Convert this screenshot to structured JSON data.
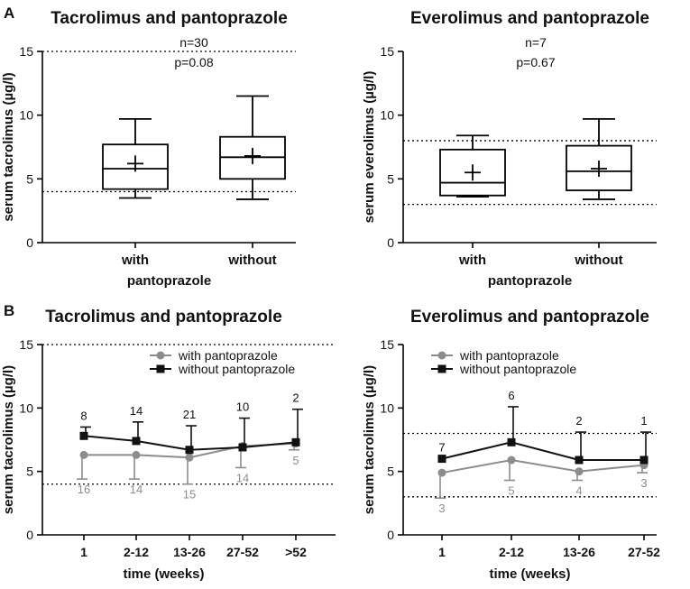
{
  "panel_labels": [
    "A",
    "B"
  ],
  "colors": {
    "with": "#8c8c8c",
    "without": "#111111",
    "axis": "#000000",
    "ref": "#000000"
  },
  "chart_data": [
    {
      "id": "A-tac",
      "type": "box",
      "title": "Tacrolimus and pantoprazole",
      "ylabel": "serum tacrolimus (µg/l)",
      "xlabel": "pantoprazole",
      "ylim": [
        0,
        15
      ],
      "yticks": [
        0,
        5,
        10,
        15
      ],
      "ref_lines": [
        4,
        15
      ],
      "annotations": [
        "n=30",
        "p=0.08"
      ],
      "categories": [
        "with",
        "without"
      ],
      "boxes": [
        {
          "min": 3.5,
          "q1": 4.2,
          "median": 5.8,
          "q3": 7.7,
          "max": 9.7,
          "mean": 6.2
        },
        {
          "min": 3.4,
          "q1": 5.0,
          "median": 6.7,
          "q3": 8.3,
          "max": 11.5,
          "mean": 6.8
        }
      ]
    },
    {
      "id": "A-eve",
      "type": "box",
      "title": "Everolimus and pantoprazole",
      "ylabel": "serum everolimus (µg/l)",
      "xlabel": "pantoprazole",
      "ylim": [
        0,
        15
      ],
      "yticks": [
        0,
        5,
        10,
        15
      ],
      "ref_lines": [
        3,
        8
      ],
      "annotations": [
        "n=7",
        "p=0.67"
      ],
      "categories": [
        "with",
        "without"
      ],
      "boxes": [
        {
          "min": 3.6,
          "q1": 3.7,
          "median": 4.7,
          "q3": 7.3,
          "max": 8.4,
          "mean": 5.5
        },
        {
          "min": 3.4,
          "q1": 4.1,
          "median": 5.6,
          "q3": 7.6,
          "max": 9.7,
          "mean": 5.8
        }
      ]
    },
    {
      "id": "B-tac",
      "type": "line",
      "title": "Tacrolimus and pantoprazole",
      "ylabel": "serum tacrolimus (µg/l)",
      "xlabel": "time (weeks)",
      "ylim": [
        0,
        15
      ],
      "yticks": [
        0,
        5,
        10,
        15
      ],
      "ref_lines": [
        4,
        15
      ],
      "categories": [
        "1",
        "2-12",
        "13-26",
        "27-52",
        ">52"
      ],
      "legend": [
        "with pantoprazole",
        "without pantoprazole"
      ],
      "series": [
        {
          "name": "with pantoprazole",
          "values": [
            6.3,
            6.3,
            6.1,
            7.0,
            7.2
          ],
          "err": [
            1.9,
            1.9,
            2.1,
            1.7,
            0.5
          ],
          "n": [
            "16",
            "14",
            "15",
            "14",
            "5"
          ]
        },
        {
          "name": "without pantoprazole",
          "values": [
            7.8,
            7.4,
            6.7,
            6.9,
            7.3
          ],
          "err": [
            0.7,
            1.5,
            1.9,
            2.3,
            2.6
          ],
          "n": [
            "8",
            "14",
            "21",
            "10",
            "2"
          ]
        }
      ]
    },
    {
      "id": "B-eve",
      "type": "line",
      "title": "Everolimus and pantoprazole",
      "ylabel": "serum tacrolimus (µg/l)",
      "xlabel": "time (weeks)",
      "ylim": [
        0,
        15
      ],
      "yticks": [
        0,
        5,
        10,
        15
      ],
      "ref_lines": [
        3,
        8
      ],
      "categories": [
        "1",
        "2-12",
        "13-26",
        "27-52"
      ],
      "legend": [
        "with pantoprazole",
        "without pantoprazole"
      ],
      "series": [
        {
          "name": "with pantoprazole",
          "values": [
            4.9,
            5.9,
            5.0,
            5.5
          ],
          "err": [
            2.0,
            1.6,
            0.7,
            0.6
          ],
          "n": [
            "3",
            "5",
            "4",
            "3"
          ]
        },
        {
          "name": "without pantoprazole",
          "values": [
            6.0,
            7.3,
            5.9,
            5.9
          ],
          "err": [
            0,
            2.8,
            2.2,
            2.2
          ],
          "n": [
            "7",
            "6",
            "2",
            "1"
          ]
        }
      ]
    }
  ]
}
